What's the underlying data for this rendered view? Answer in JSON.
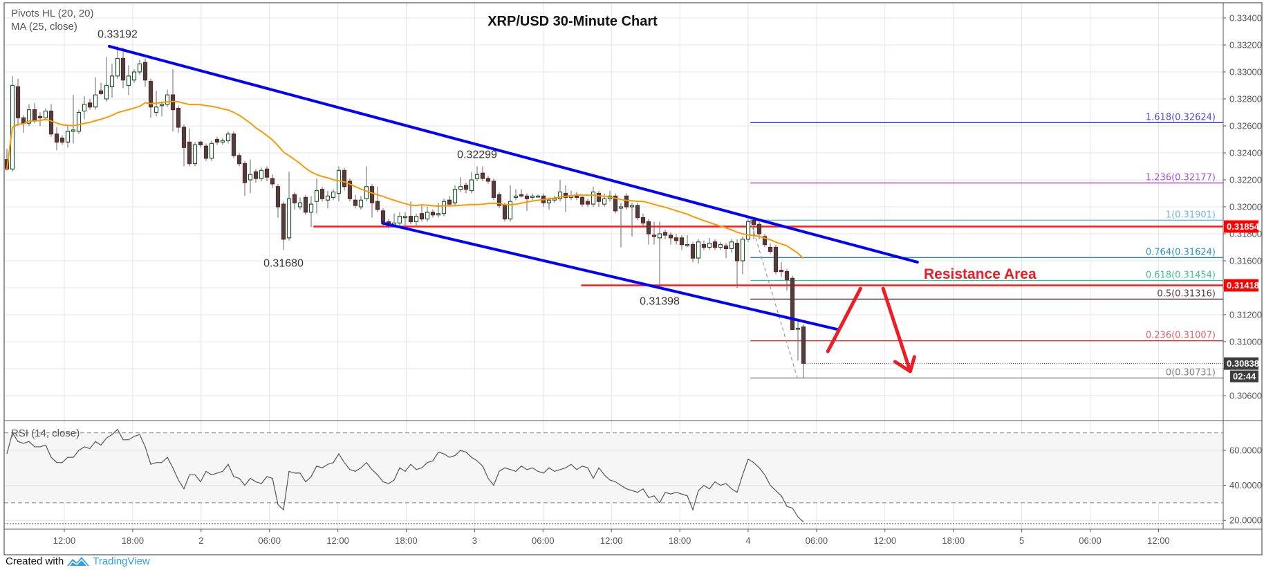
{
  "chart_data": {
    "type": "candlestick",
    "title": "XRP/USD 30-Minute Chart",
    "legend": [
      "Pivots HL (20, 20)",
      "MA (25, close)"
    ],
    "ma_period": 25,
    "ma_color": "#ff9800",
    "up_color": "#1e5631",
    "down_color": "#6b1f1f",
    "price_ticks": [
      "0.33400",
      "0.33200",
      "0.33000",
      "0.32800",
      "0.32600",
      "0.32400",
      "0.32200",
      "0.32000",
      "0.31800",
      "0.31600",
      "0.31400",
      "0.31200",
      "0.31000",
      "0.30800",
      "0.30600"
    ],
    "price_tick_values": [
      0.334,
      0.332,
      0.33,
      0.328,
      0.326,
      0.324,
      0.322,
      0.32,
      0.318,
      0.316,
      0.314,
      0.312,
      0.31,
      0.308,
      0.306
    ],
    "visible_price_ticks": [
      "0.33400",
      "0.33200",
      "0.33000",
      "0.32800",
      "0.32600",
      "0.32400",
      "0.32200",
      "0.32000",
      "0.31800",
      "0.31600",
      "",
      "0.31200",
      "0.31000",
      "",
      "0.30600"
    ],
    "ylim": [
      0.3055,
      0.3348
    ],
    "time_labels": [
      "12:00",
      "18:00",
      "2",
      "06:00",
      "12:00",
      "18:00",
      "3",
      "06:00",
      "12:00",
      "18:00",
      "4",
      "06:00",
      "12:00",
      "18:00",
      "5",
      "06:00",
      "12:00"
    ],
    "grid": true,
    "candles": [
      [
        0.3235,
        0.3243,
        0.3227,
        0.3228
      ],
      [
        0.3228,
        0.3297,
        0.3226,
        0.329
      ],
      [
        0.3289,
        0.3295,
        0.326,
        0.3266
      ],
      [
        0.3266,
        0.3268,
        0.3255,
        0.3262
      ],
      [
        0.3262,
        0.3276,
        0.326,
        0.3272
      ],
      [
        0.3272,
        0.3277,
        0.3262,
        0.3264
      ],
      [
        0.3267,
        0.327,
        0.326,
        0.3266
      ],
      [
        0.3266,
        0.3273,
        0.3264,
        0.3271
      ],
      [
        0.3271,
        0.3276,
        0.3252,
        0.3254
      ],
      [
        0.3254,
        0.3259,
        0.3242,
        0.3248
      ],
      [
        0.3251,
        0.3253,
        0.3246,
        0.3248
      ],
      [
        0.3248,
        0.326,
        0.3244,
        0.3256
      ],
      [
        0.3256,
        0.3283,
        0.3247,
        0.3257
      ],
      [
        0.3256,
        0.3272,
        0.3254,
        0.327
      ],
      [
        0.3271,
        0.3282,
        0.3265,
        0.3276
      ],
      [
        0.3277,
        0.328,
        0.3272,
        0.3274
      ],
      [
        0.3274,
        0.3296,
        0.3272,
        0.3283
      ],
      [
        0.3286,
        0.3292,
        0.3283,
        0.3284
      ],
      [
        0.328,
        0.3311,
        0.3278,
        0.329
      ],
      [
        0.3289,
        0.3306,
        0.3281,
        0.3297
      ],
      [
        0.3297,
        0.3319,
        0.3295,
        0.331
      ],
      [
        0.331,
        0.3318,
        0.3288,
        0.3294
      ],
      [
        0.329,
        0.3305,
        0.3283,
        0.3297
      ],
      [
        0.3294,
        0.3302,
        0.3292,
        0.33
      ],
      [
        0.33,
        0.3309,
        0.3298,
        0.3306
      ],
      [
        0.3307,
        0.331,
        0.3289,
        0.3294
      ],
      [
        0.3293,
        0.3295,
        0.3266,
        0.3274
      ],
      [
        0.327,
        0.3286,
        0.3267,
        0.3274
      ],
      [
        0.3275,
        0.3278,
        0.3267,
        0.3276
      ],
      [
        0.3276,
        0.3287,
        0.3274,
        0.3283
      ],
      [
        0.3283,
        0.3302,
        0.3256,
        0.3272
      ],
      [
        0.3273,
        0.3275,
        0.3255,
        0.3259
      ],
      [
        0.3259,
        0.3261,
        0.323,
        0.3244
      ],
      [
        0.3248,
        0.3258,
        0.323,
        0.3232
      ],
      [
        0.3232,
        0.3248,
        0.323,
        0.3246
      ],
      [
        0.3248,
        0.3249,
        0.3244,
        0.3246
      ],
      [
        0.3245,
        0.3247,
        0.3234,
        0.3236
      ],
      [
        0.3236,
        0.3249,
        0.3234,
        0.3247
      ],
      [
        0.325,
        0.3252,
        0.3246,
        0.3248
      ],
      [
        0.3248,
        0.3251,
        0.3246,
        0.3249
      ],
      [
        0.3249,
        0.3256,
        0.3247,
        0.3254
      ],
      [
        0.3254,
        0.3256,
        0.3236,
        0.3238
      ],
      [
        0.3238,
        0.324,
        0.323,
        0.3232
      ],
      [
        0.3232,
        0.3234,
        0.3208,
        0.3218
      ],
      [
        0.322,
        0.3235,
        0.321,
        0.3224
      ],
      [
        0.3226,
        0.3228,
        0.3218,
        0.3221
      ],
      [
        0.3221,
        0.3229,
        0.3219,
        0.3227
      ],
      [
        0.3228,
        0.323,
        0.3219,
        0.3222
      ],
      [
        0.3221,
        0.3224,
        0.3214,
        0.3217
      ],
      [
        0.3215,
        0.3217,
        0.3192,
        0.32
      ],
      [
        0.3202,
        0.3204,
        0.3168,
        0.3176
      ],
      [
        0.3177,
        0.3226,
        0.3175,
        0.3206
      ],
      [
        0.3209,
        0.3211,
        0.3198,
        0.3203
      ],
      [
        0.32,
        0.3207,
        0.3198,
        0.3203
      ],
      [
        0.3207,
        0.3209,
        0.3194,
        0.3196
      ],
      [
        0.3196,
        0.3208,
        0.3185,
        0.3202
      ],
      [
        0.3204,
        0.3221,
        0.3195,
        0.3212
      ],
      [
        0.3213,
        0.3215,
        0.3204,
        0.3206
      ],
      [
        0.3205,
        0.3212,
        0.3199,
        0.3208
      ],
      [
        0.3207,
        0.3213,
        0.3205,
        0.3211
      ],
      [
        0.321,
        0.323,
        0.3204,
        0.3227
      ],
      [
        0.3227,
        0.3229,
        0.3212,
        0.3215
      ],
      [
        0.3219,
        0.3221,
        0.3204,
        0.3206
      ],
      [
        0.3205,
        0.3209,
        0.3199,
        0.3201
      ],
      [
        0.32,
        0.3208,
        0.3198,
        0.3205
      ],
      [
        0.3206,
        0.323,
        0.3204,
        0.3215
      ],
      [
        0.3215,
        0.3217,
        0.3192,
        0.3203
      ],
      [
        0.3204,
        0.3215,
        0.3196,
        0.3198
      ],
      [
        0.3197,
        0.3199,
        0.3186,
        0.3189
      ],
      [
        0.3189,
        0.3191,
        0.3184,
        0.3186
      ],
      [
        0.3186,
        0.3195,
        0.3185,
        0.3188
      ],
      [
        0.3188,
        0.3196,
        0.3186,
        0.3193
      ],
      [
        0.3192,
        0.3196,
        0.3186,
        0.3193
      ],
      [
        0.3193,
        0.3204,
        0.3187,
        0.3189
      ],
      [
        0.3189,
        0.3195,
        0.3186,
        0.3193
      ],
      [
        0.3195,
        0.3201,
        0.3189,
        0.3191
      ],
      [
        0.3191,
        0.32,
        0.3189,
        0.3196
      ],
      [
        0.3196,
        0.3198,
        0.3192,
        0.3194
      ],
      [
        0.3194,
        0.3203,
        0.3192,
        0.3195
      ],
      [
        0.3195,
        0.3206,
        0.3193,
        0.3204
      ],
      [
        0.3205,
        0.3208,
        0.32,
        0.3202
      ],
      [
        0.3203,
        0.3216,
        0.3201,
        0.3213
      ],
      [
        0.3213,
        0.3222,
        0.3211,
        0.3215
      ],
      [
        0.3216,
        0.3218,
        0.321,
        0.3213
      ],
      [
        0.3212,
        0.3226,
        0.321,
        0.322
      ],
      [
        0.3221,
        0.323,
        0.3219,
        0.3224
      ],
      [
        0.3225,
        0.323,
        0.3219,
        0.3221
      ],
      [
        0.3221,
        0.3223,
        0.3217,
        0.3219
      ],
      [
        0.3219,
        0.3221,
        0.3205,
        0.3207
      ],
      [
        0.3209,
        0.3211,
        0.3199,
        0.3201
      ],
      [
        0.3201,
        0.3203,
        0.3189,
        0.3191
      ],
      [
        0.3191,
        0.3216,
        0.3189,
        0.3204
      ],
      [
        0.3207,
        0.3213,
        0.3205,
        0.3208
      ],
      [
        0.3209,
        0.3213,
        0.3207,
        0.3208
      ],
      [
        0.3208,
        0.321,
        0.3197,
        0.3206
      ],
      [
        0.3207,
        0.321,
        0.3205,
        0.3208
      ],
      [
        0.3208,
        0.3209,
        0.3207,
        0.3208
      ],
      [
        0.3208,
        0.321,
        0.32,
        0.3203
      ],
      [
        0.3203,
        0.3207,
        0.3198,
        0.3205
      ],
      [
        0.3205,
        0.3208,
        0.3203,
        0.3206
      ],
      [
        0.3206,
        0.322,
        0.3204,
        0.3211
      ],
      [
        0.321,
        0.3216,
        0.3196,
        0.3207
      ],
      [
        0.3207,
        0.3212,
        0.3205,
        0.3208
      ],
      [
        0.3208,
        0.3211,
        0.3205,
        0.3207
      ],
      [
        0.3207,
        0.3209,
        0.32,
        0.3202
      ],
      [
        0.3204,
        0.3206,
        0.32,
        0.3202
      ],
      [
        0.3202,
        0.3215,
        0.32,
        0.3211
      ],
      [
        0.321,
        0.3212,
        0.32,
        0.3204
      ],
      [
        0.3202,
        0.321,
        0.32,
        0.3206
      ],
      [
        0.3206,
        0.3212,
        0.3204,
        0.3208
      ],
      [
        0.3208,
        0.321,
        0.3195,
        0.3197
      ],
      [
        0.3199,
        0.3203,
        0.317,
        0.32
      ],
      [
        0.3208,
        0.321,
        0.3198,
        0.32
      ],
      [
        0.32,
        0.3203,
        0.3178,
        0.3201
      ],
      [
        0.3201,
        0.3203,
        0.319,
        0.3192
      ],
      [
        0.3192,
        0.3195,
        0.3186,
        0.3188
      ],
      [
        0.3189,
        0.3191,
        0.3172,
        0.318
      ],
      [
        0.3179,
        0.3189,
        0.3172,
        0.3178
      ],
      [
        0.3177,
        0.3189,
        0.314,
        0.318
      ],
      [
        0.3181,
        0.3183,
        0.3176,
        0.3179
      ],
      [
        0.3179,
        0.3181,
        0.3172,
        0.3177
      ],
      [
        0.3177,
        0.318,
        0.3172,
        0.3175
      ],
      [
        0.3177,
        0.3179,
        0.3168,
        0.3172
      ],
      [
        0.3172,
        0.3179,
        0.317,
        0.3172
      ],
      [
        0.3172,
        0.3174,
        0.3159,
        0.3162
      ],
      [
        0.3162,
        0.3176,
        0.3158,
        0.3174
      ],
      [
        0.3172,
        0.3175,
        0.3168,
        0.317
      ],
      [
        0.317,
        0.3177,
        0.3168,
        0.3173
      ],
      [
        0.3174,
        0.3176,
        0.3168,
        0.317
      ],
      [
        0.317,
        0.3174,
        0.3168,
        0.3172
      ],
      [
        0.3171,
        0.3173,
        0.3162,
        0.3169
      ],
      [
        0.3169,
        0.3176,
        0.3166,
        0.3174
      ],
      [
        0.3173,
        0.3176,
        0.314,
        0.316
      ],
      [
        0.316,
        0.3178,
        0.315,
        0.3176
      ],
      [
        0.3176,
        0.3191,
        0.3174,
        0.3189
      ],
      [
        0.319,
        0.3191,
        0.3176,
        0.3187
      ],
      [
        0.3187,
        0.3189,
        0.3176,
        0.318
      ],
      [
        0.3178,
        0.318,
        0.317,
        0.3172
      ],
      [
        0.317,
        0.3173,
        0.3165,
        0.3167
      ],
      [
        0.317,
        0.3172,
        0.315,
        0.3152
      ],
      [
        0.3153,
        0.3159,
        0.3148,
        0.3152
      ],
      [
        0.3152,
        0.3154,
        0.3138,
        0.3146
      ],
      [
        0.3147,
        0.3149,
        0.3109,
        0.3109
      ],
      [
        0.311,
        0.3115,
        0.3086,
        0.311
      ],
      [
        0.3111,
        0.3113,
        0.3073,
        0.3084
      ]
    ],
    "pivots": [
      {
        "label": "0.33192",
        "candle": 20,
        "price": 0.33192,
        "side": "high"
      },
      {
        "label": "0.31680",
        "candle": 50,
        "price": 0.3168,
        "side": "low"
      },
      {
        "label": "0.32299",
        "candle": 85,
        "price": 0.32299,
        "side": "high"
      },
      {
        "label": "0.31398",
        "candle": 118,
        "price": 0.31398,
        "side": "low"
      }
    ],
    "trendlines": [
      {
        "from": [
          18.5,
          0.3319
        ],
        "to": [
          164.6,
          0.3159
        ],
        "color": "#0000ff"
      },
      {
        "from": [
          67.9,
          0.3188
        ],
        "to": [
          150.1,
          0.31092
        ],
        "color": "#0000ff"
      }
    ],
    "horizontal_levels": [
      {
        "label": "0.31854",
        "price": 0.31854,
        "from_candle": 55.4,
        "color": "#ff0000"
      },
      {
        "label": "0.31418",
        "price": 0.31418,
        "from_candle": 103.8,
        "color": "#ff0000"
      }
    ],
    "fibonacci": {
      "from": [
        134.4,
        0.31901
      ],
      "to": [
        142.9,
        0.30731
      ],
      "levels": [
        {
          "ratio": "1.618",
          "price": "0.32624",
          "label": "1.618(0.32624)",
          "line": "#2a2acc",
          "text": "#4b4bdc"
        },
        {
          "ratio": "1.236",
          "price": "0.32177",
          "label": "1.236(0.32177)",
          "line": "#8e24aa",
          "text": "#a050d8"
        },
        {
          "ratio": "1",
          "price": "0.31901",
          "label": "1(0.31901)",
          "line": "#64b5f6",
          "text": "#6cb8e6"
        },
        {
          "ratio": "0.764",
          "price": "0.31624",
          "label": "0.764(0.31624)",
          "line": "#1e88c8",
          "text": "#2d8fd0"
        },
        {
          "ratio": "0.618",
          "price": "0.31454",
          "label": "0.618(0.31454)",
          "line": "#26c690",
          "text": "#3ac48c"
        },
        {
          "ratio": "0.5",
          "price": "0.31316",
          "label": "0.5(0.31316)",
          "line": "#4a1a2a",
          "text": "#5a3a4a"
        },
        {
          "ratio": "0.236",
          "price": "0.31007",
          "label": "0.236(0.31007)",
          "line": "#c62828",
          "text": "#e06060"
        },
        {
          "ratio": "0",
          "price": "0.30731",
          "label": "0(0.30731)",
          "line": "#808080",
          "text": "#808080"
        }
      ]
    },
    "annotation": {
      "text": "Resistance Area",
      "color": "#ee1c24"
    },
    "arrows": [
      {
        "from": [
          148.4,
          0.30928
        ],
        "to": [
          154.3,
          0.31394
        ],
        "head": false
      },
      {
        "from": [
          158.4,
          0.31394
        ],
        "to": [
          163.3,
          0.3078
        ],
        "head": true
      }
    ],
    "last_price": {
      "label": "0.30838",
      "price": 0.30838,
      "countdown": "02:44"
    },
    "rsi": {
      "label": "RSI (14, close)",
      "period": 14,
      "upper": 70,
      "lower": 30,
      "ticks": [
        "60.0000",
        "40.0000",
        "20.0000"
      ],
      "tick_values": [
        60,
        40,
        20
      ],
      "values": [
        58,
        70,
        65,
        64,
        65,
        62,
        62,
        63,
        56,
        53,
        53,
        56,
        56,
        60,
        62,
        61,
        65,
        63,
        67,
        69,
        72,
        66,
        66,
        68,
        69,
        62,
        52,
        53,
        53,
        56,
        50,
        43,
        38,
        46,
        46,
        42,
        48,
        46,
        47,
        48,
        52,
        45,
        44,
        40,
        44,
        42,
        41,
        45,
        44,
        29,
        26,
        48,
        47,
        47,
        42,
        45,
        51,
        50,
        52,
        53,
        58,
        53,
        49,
        48,
        50,
        53,
        49,
        46,
        42,
        41,
        43,
        50,
        48,
        52,
        49,
        50,
        53,
        54,
        59,
        58,
        56,
        57,
        60,
        59,
        56,
        54,
        51,
        44,
        40,
        48,
        50,
        49,
        48,
        51,
        49,
        50,
        48,
        47,
        50,
        48,
        49,
        50,
        52,
        49,
        51,
        50,
        44,
        50,
        46,
        43,
        42,
        40,
        38,
        37,
        36,
        38,
        33,
        34,
        30,
        36,
        35,
        36,
        35,
        34,
        26,
        37,
        40,
        38,
        42,
        40,
        41,
        38,
        36,
        46,
        55,
        53,
        50,
        46,
        40,
        37,
        34,
        28,
        27,
        22,
        19
      ]
    }
  },
  "footer": {
    "created_with": "Created with",
    "brand": "TradingView",
    "brand_color": "#2ea1e8"
  }
}
